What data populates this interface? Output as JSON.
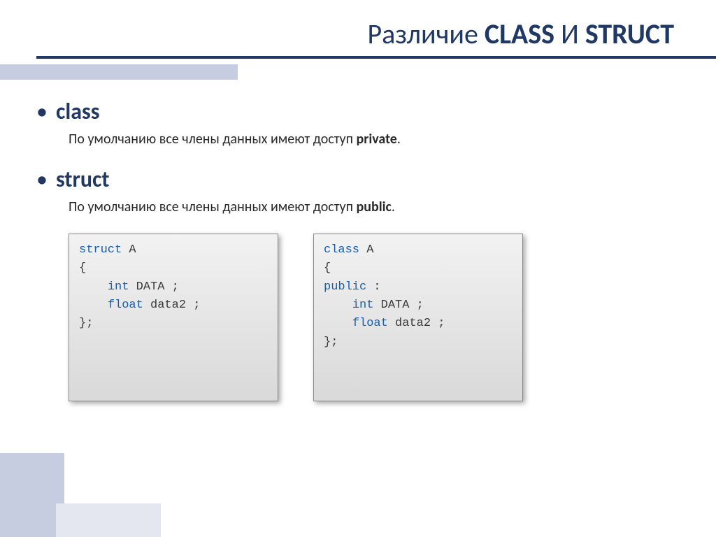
{
  "colors": {
    "title": "#1f3864",
    "accent_light": "#c7cde0",
    "accent_pale": "#e5e7f0",
    "keyword": "#1560b3",
    "code_text": "#3a3a3a"
  },
  "title": {
    "prefix": "Различие ",
    "word1": "CLASS",
    "mid": " И ",
    "word2": "STRUCT"
  },
  "section1": {
    "heading": "class",
    "text_prefix": "По умолчанию все члены данных имеют доступ ",
    "text_bold": "private",
    "text_suffix": "."
  },
  "section2": {
    "heading": "struct",
    "text_prefix": "По умолчанию все члены данных имеют доступ ",
    "text_bold": "public",
    "text_suffix": "."
  },
  "code1": {
    "l1_kw": "STRUCT",
    "l1_name": " A",
    "l2": "{",
    "l3_kw": "INT",
    "l3_rest": " DATA ;",
    "l4_kw": "FLOAT",
    "l4_rest": " data2 ;",
    "l5": "};"
  },
  "code2": {
    "l1_kw": "CLASS",
    "l1_name": " A",
    "l2": "{",
    "l3_kw": "PUBLIC",
    "l3_rest": " :",
    "l4_kw": "INT",
    "l4_rest": " DATA ;",
    "l5_kw": "FLOAT",
    "l5_rest": " data2 ;",
    "l6": "};"
  }
}
